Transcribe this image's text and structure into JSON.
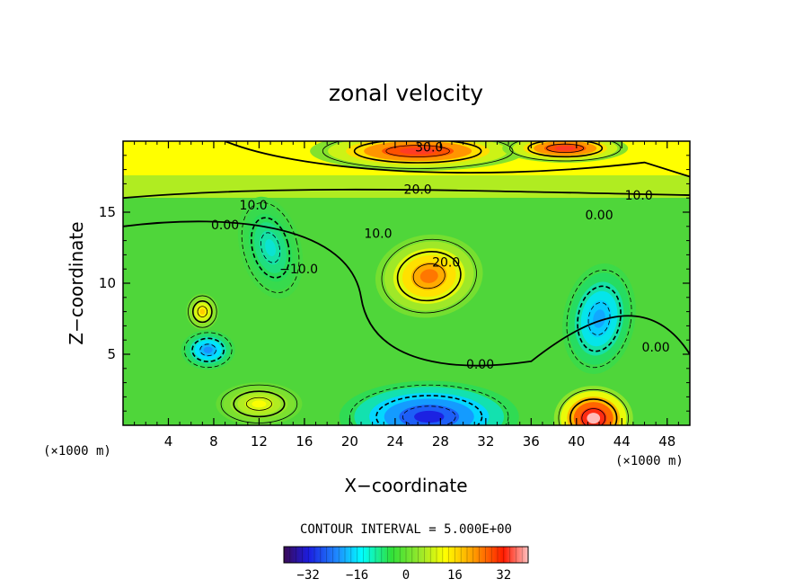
{
  "chart_data": {
    "type": "contour",
    "title": "zonal velocity",
    "xlabel": "X−coordinate",
    "ylabel": "Z−coordinate",
    "x_unit_left": "(×1000 m)",
    "x_unit_right": "(×1000 m)",
    "xlim": [
      0,
      50
    ],
    "ylim": [
      0,
      20
    ],
    "x_ticks": [
      4,
      8,
      12,
      16,
      20,
      24,
      28,
      32,
      36,
      40,
      44,
      48
    ],
    "y_ticks": [
      5,
      10,
      15
    ],
    "contour_interval_text": "CONTOUR INTERVAL = 5.000E+00",
    "colorbar": {
      "min": -40,
      "max": 40,
      "tick_values": [
        -32,
        -16,
        0,
        16,
        32
      ],
      "tick_labels": [
        "−32",
        "−16",
        "0",
        "16",
        "32"
      ]
    },
    "features": [
      {
        "x": 27,
        "y": 10.5,
        "value": 25
      },
      {
        "x": 26,
        "y": 19.3,
        "value": 34
      },
      {
        "x": 39,
        "y": 19.5,
        "value": 34
      },
      {
        "x": 41.5,
        "y": 0.5,
        "value": 40
      },
      {
        "x": 27,
        "y": 0.6,
        "value": -32
      },
      {
        "x": 42,
        "y": 7.5,
        "value": -20
      },
      {
        "x": 7.5,
        "y": 5.3,
        "value": -22
      },
      {
        "x": 13,
        "y": 12.5,
        "value": -12
      },
      {
        "x": 7,
        "y": 8,
        "value": 18
      },
      {
        "x": 12,
        "y": 1.5,
        "value": 14
      }
    ],
    "contour_labels": [
      {
        "text": "30.0",
        "x": 27,
        "y": 19.6
      },
      {
        "text": "20.0",
        "x": 26,
        "y": 16.6
      },
      {
        "text": "10.0",
        "x": 45.5,
        "y": 16.2
      },
      {
        "text": "10.0",
        "x": 11.5,
        "y": 15.5
      },
      {
        "text": "0.00",
        "x": 9,
        "y": 14.1
      },
      {
        "text": "0.00",
        "x": 42,
        "y": 14.8
      },
      {
        "text": "10.0",
        "x": 22.5,
        "y": 13.5
      },
      {
        "text": "20.0",
        "x": 28.5,
        "y": 11.5
      },
      {
        "text": "−10.0",
        "x": 15.5,
        "y": 11
      },
      {
        "text": "0.00",
        "x": 31.5,
        "y": 4.3
      },
      {
        "text": "0.00",
        "x": 47,
        "y": 5.5
      }
    ]
  }
}
